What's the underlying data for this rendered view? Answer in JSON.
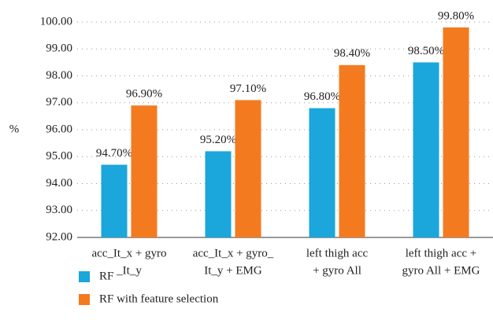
{
  "chart_data": {
    "type": "bar",
    "y_label": "%",
    "categories": [
      [
        "acc_It_x + gyro",
        "_It_y"
      ],
      [
        "acc_It_x + gyro_",
        "It_y + EMG"
      ],
      [
        "left thigh acc",
        "+ gyro All"
      ],
      [
        "left thigh acc +",
        "gyro All + EMG"
      ]
    ],
    "series": [
      {
        "name": "RF",
        "color": "#1ba6dc",
        "values": [
          94.7,
          95.2,
          96.8,
          98.5
        ],
        "value_labels": [
          "94.70%",
          "95.20%",
          "96.80%",
          "98.50%"
        ]
      },
      {
        "name": "RF with feature selection",
        "color": "#f47a20",
        "values": [
          96.9,
          97.1,
          98.4,
          99.8
        ],
        "value_labels": [
          "96.90%",
          "97.10%",
          "98.40%",
          "99.80%"
        ]
      }
    ],
    "ylim": [
      92,
      100
    ],
    "yticks": [
      {
        "value": 92,
        "label": "92.00"
      },
      {
        "value": 93,
        "label": "93.00"
      },
      {
        "value": 94,
        "label": "94.00"
      },
      {
        "value": 95,
        "label": "95.00"
      },
      {
        "value": 96,
        "label": "96.00"
      },
      {
        "value": 97,
        "label": "97.00"
      },
      {
        "value": 98,
        "label": "98.00"
      },
      {
        "value": 99,
        "label": "99.00"
      },
      {
        "value": 100,
        "label": "100.00"
      }
    ],
    "grid": true,
    "legend": "bottom-left"
  }
}
